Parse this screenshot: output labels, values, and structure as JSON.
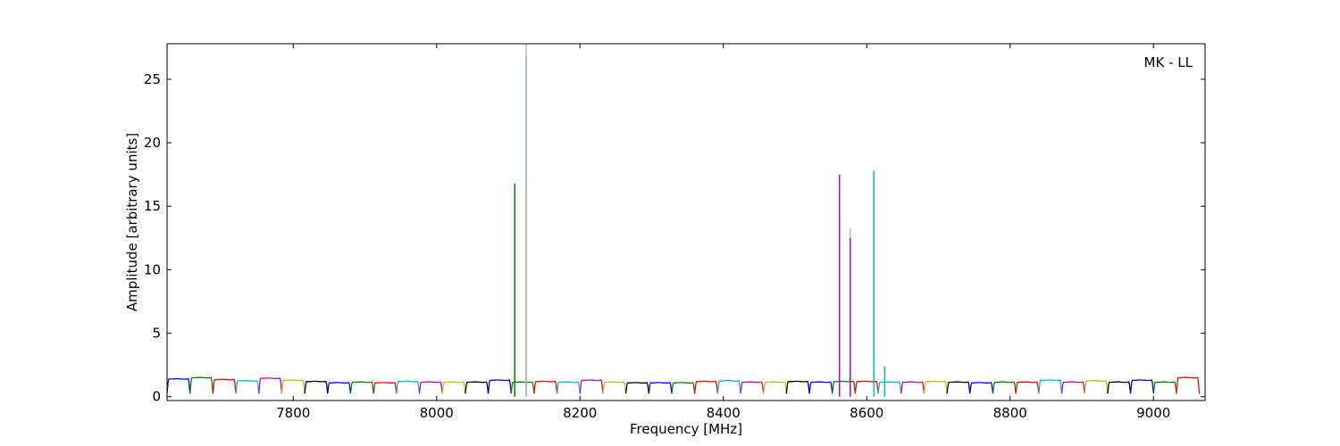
{
  "chart_data": {
    "type": "line",
    "title": "",
    "annotation": "MK - LL",
    "xlabel": "Frequency [MHz]",
    "ylabel": "Amplitude [arbitrary units]",
    "xlim": [
      7624,
      9072
    ],
    "ylim": [
      -0.3,
      27.8
    ],
    "xticks": [
      7800,
      8000,
      8200,
      8400,
      8600,
      8800,
      9000
    ],
    "yticks": [
      0,
      5,
      10,
      15,
      20,
      25
    ],
    "xtick_labels": [
      "7800",
      "8000",
      "8200",
      "8400",
      "8600",
      "8800",
      "9000"
    ],
    "ytick_labels": [
      "0",
      "5",
      "10",
      "15",
      "20",
      "25"
    ],
    "grid": false,
    "legend": "none",
    "channel_width_mhz": 32,
    "channel_start_mhz": 7624,
    "channel_colors": [
      "#0000ff",
      "#008000",
      "#ff0000",
      "#00bfbf",
      "#bf00bf",
      "#bfbf00",
      "#000000"
    ],
    "channel_baseline_levels": [
      1.4,
      1.5,
      1.35,
      1.25,
      1.45,
      1.3,
      1.2,
      1.1,
      1.15,
      1.1,
      1.2,
      1.15,
      1.15,
      1.15,
      1.3,
      1.15,
      1.2,
      1.15,
      1.3,
      1.15,
      1.1,
      1.1,
      1.1,
      1.2,
      1.25,
      1.15,
      1.15,
      1.2,
      1.15,
      1.2,
      1.2,
      1.15,
      1.15,
      1.2,
      1.15,
      1.1,
      1.15,
      1.15,
      1.3,
      1.15,
      1.25,
      1.15,
      1.3,
      1.15,
      1.5
    ],
    "spikes": [
      {
        "x": 8109,
        "y": 16.8,
        "color": "#008000"
      },
      {
        "x": 8125,
        "y": 26.8,
        "color": "#008000"
      },
      {
        "x": 8125,
        "y": 27.8,
        "color": "#bfbfbf"
      },
      {
        "x": 8562,
        "y": 17.5,
        "color": "#bf00bf"
      },
      {
        "x": 8577,
        "y": 13.3,
        "color": "#bfbfbf"
      },
      {
        "x": 8577,
        "y": 12.5,
        "color": "#bf00bf"
      },
      {
        "x": 8610,
        "y": 17.8,
        "color": "#00bfbf"
      },
      {
        "x": 8625,
        "y": 2.4,
        "color": "#00bfbf"
      }
    ]
  }
}
